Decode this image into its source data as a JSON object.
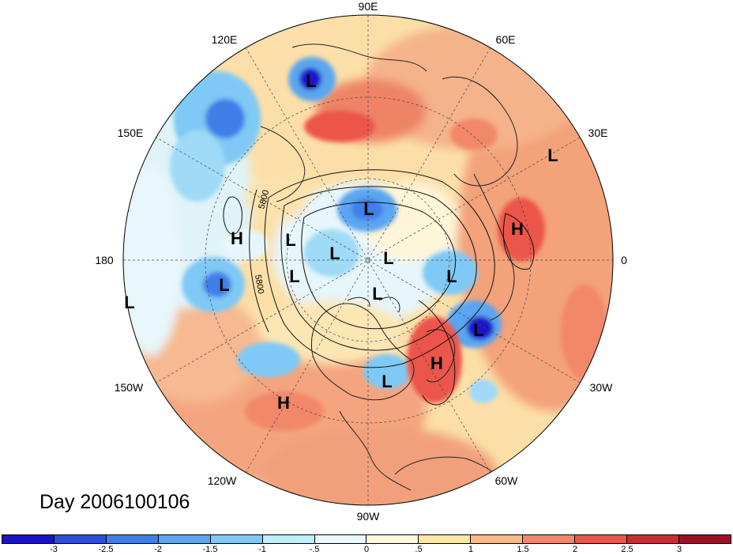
{
  "title": "Day 2006100106",
  "longitude_labels": [
    "90E",
    "60E",
    "30E",
    "0",
    "30W",
    "60W",
    "90W",
    "120W",
    "150W",
    "180",
    "150E",
    "120E"
  ],
  "contour_labels": [
    "5800",
    "5800"
  ],
  "pressure_centers": [
    {
      "type": "L"
    },
    {
      "type": "L"
    },
    {
      "type": "H"
    },
    {
      "type": "L"
    },
    {
      "type": "L"
    },
    {
      "type": "L"
    },
    {
      "type": "L"
    },
    {
      "type": "H"
    },
    {
      "type": "L"
    },
    {
      "type": "L"
    },
    {
      "type": "L"
    },
    {
      "type": "L"
    },
    {
      "type": "L"
    },
    {
      "type": "L"
    },
    {
      "type": "H"
    },
    {
      "type": "H"
    },
    {
      "type": "L"
    }
  ],
  "colorbar": {
    "colors": [
      "#1a12c8",
      "#2e4de0",
      "#3f7ee8",
      "#5aa6f0",
      "#7ec9f5",
      "#bdeef9",
      "#e8f8fb",
      "#fff8d8",
      "#fde7a6",
      "#f9b989",
      "#f2876a",
      "#ec5548",
      "#cc2a34",
      "#9e0f26"
    ],
    "labels": [
      "-3",
      "-2.5",
      "-2",
      "-1.5",
      "-1",
      "-.5",
      "0",
      ".5",
      "1",
      "1.5",
      "2",
      "2.5",
      "3"
    ]
  },
  "colors": {
    "background": "#ffffff",
    "grid": "#444444",
    "coast": "#222222"
  }
}
